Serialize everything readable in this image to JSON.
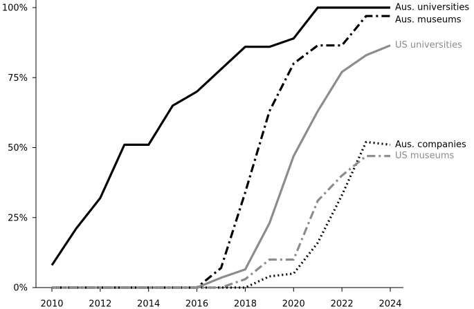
{
  "chart_data": {
    "type": "line",
    "x": [
      2010,
      2011,
      2012,
      2013,
      2014,
      2015,
      2016,
      2017,
      2018,
      2019,
      2020,
      2021,
      2022,
      2023,
      2024
    ],
    "series": [
      {
        "name": "Aus. universities",
        "color": "#000000",
        "style": "solid",
        "values": [
          8,
          21,
          32,
          51,
          51,
          65,
          70,
          78,
          86,
          86,
          89,
          100,
          100,
          100,
          100
        ]
      },
      {
        "name": "Aus. museums",
        "color": "#000000",
        "style": "dashdot",
        "values": [
          0,
          0,
          0,
          0,
          0,
          0,
          0,
          7,
          34,
          63,
          80,
          86.5,
          86.5,
          97,
          97
        ]
      },
      {
        "name": "US universities",
        "color": "#8c8c8c",
        "style": "solid",
        "values": [
          0,
          0,
          0,
          0,
          0,
          0,
          0,
          3.5,
          6.5,
          23,
          47,
          63,
          77,
          83,
          86.5
        ]
      },
      {
        "name": "Aus. companies",
        "color": "#000000",
        "style": "dotted",
        "values": [
          0,
          0,
          0,
          0,
          0,
          0,
          0,
          0,
          0,
          4,
          5,
          16,
          33,
          52,
          51
        ]
      },
      {
        "name": "US museums",
        "color": "#8c8c8c",
        "style": "dashdot",
        "values": [
          0,
          0,
          0,
          0,
          0,
          0,
          0,
          0,
          3,
          10,
          10,
          31,
          40,
          47,
          47
        ]
      }
    ],
    "xlim": [
      2010,
      2024
    ],
    "xticks": [
      2010,
      2012,
      2014,
      2016,
      2018,
      2020,
      2022,
      2024
    ],
    "ylim": [
      0,
      100
    ],
    "yticks": [
      {
        "value": 0,
        "label": "0%"
      },
      {
        "value": 25,
        "label": "25%"
      },
      {
        "value": 50,
        "label": "50%"
      },
      {
        "value": 75,
        "label": "75%"
      },
      {
        "value": 100,
        "label": "100%"
      }
    ],
    "grid": false
  }
}
